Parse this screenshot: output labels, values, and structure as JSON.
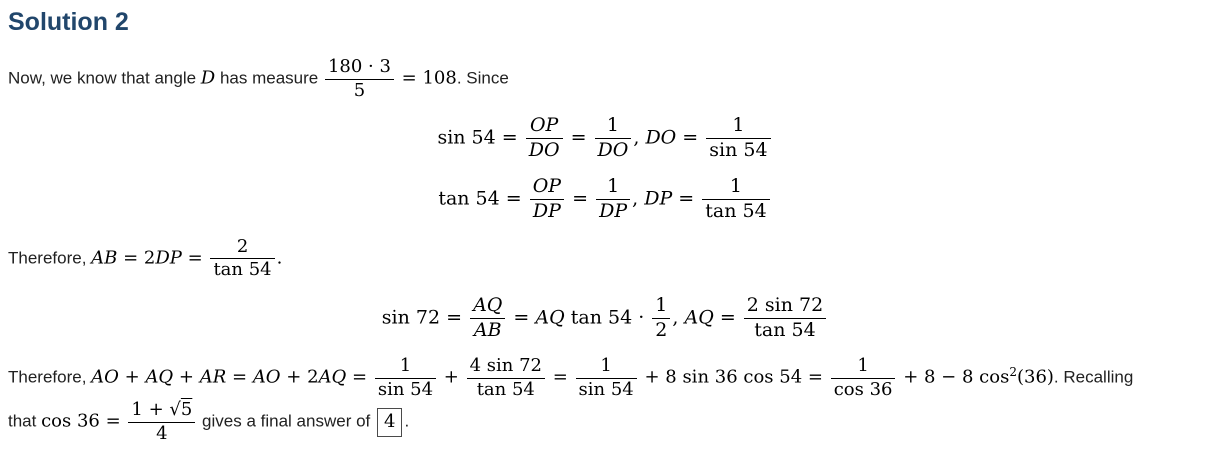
{
  "heading": "Solution 2",
  "colors": {
    "heading": "#21466b",
    "body_text": "#212121",
    "math": "#000000"
  },
  "p1": {
    "t1": "Now, we know that angle ",
    "var1": "D",
    "t2": " has measure ",
    "frac": {
      "num": "180 · 3",
      "den": "5"
    },
    "m1": " = 108",
    "t3": ". Since"
  },
  "eq1": {
    "fn": "sin 54",
    "eq_a": " = ",
    "f1": {
      "num": "OP",
      "den": "DO"
    },
    "eq_b": " = ",
    "f2": {
      "num": "1",
      "den": "DO"
    },
    "comma": ", ",
    "var1": "DO",
    "eq_c": " = ",
    "f3": {
      "num": "1",
      "den": "sin 54"
    }
  },
  "eq2": {
    "fn": "tan 54",
    "eq_a": " = ",
    "f1": {
      "num": "OP",
      "den": "DP"
    },
    "eq_b": " = ",
    "f2": {
      "num": "1",
      "den": "DP"
    },
    "comma": ", ",
    "var1": "DP",
    "eq_c": " = ",
    "f3": {
      "num": "1",
      "den": "tan 54"
    }
  },
  "p2": {
    "t1": "Therefore, ",
    "var1": "AB",
    "o1": " = 2",
    "var2": "DP",
    "o2": " = ",
    "frac": {
      "num": "2",
      "den": "tan 54"
    },
    "period": "."
  },
  "eq3": {
    "fn": "sin 72",
    "eq_a": " = ",
    "f1": {
      "num": "AQ",
      "den": "AB"
    },
    "eq_b": " = ",
    "var1": "AQ",
    "t1": " tan 54 · ",
    "f2": {
      "num": "1",
      "den": "2"
    },
    "comma": ", ",
    "var2": "AQ",
    "eq_c": " = ",
    "f3": {
      "num": "2 sin 72",
      "den": "tan 54"
    }
  },
  "p3": {
    "t1": "Therefore, ",
    "var1": "AO + AQ + AR",
    "o0": " = ",
    "var2": "AO",
    "o0b": " + 2",
    "var3": "AQ",
    "o0c": " = ",
    "f1": {
      "num": "1",
      "den": "sin 54"
    },
    "o1": " + ",
    "f2": {
      "num": "4 sin 72",
      "den": "tan 54"
    },
    "o2": " = ",
    "f3": {
      "num": "1",
      "den": "sin 54"
    },
    "o3": " + 8 sin 36 cos 54 = ",
    "f4": {
      "num": "1",
      "den": "cos 36"
    },
    "o4": " + 8 − 8 cos",
    "sup": "2",
    "o5": "(36)",
    "t2": ". Recalling"
  },
  "p4": {
    "t1": "that ",
    "m1": "cos 36 = ",
    "frac": {
      "num_pre": "1 + ",
      "radical": "√",
      "sqrt_arg": "5",
      "den": "4"
    },
    "t2": " gives a final answer of ",
    "boxed": "4",
    "t3": "."
  }
}
